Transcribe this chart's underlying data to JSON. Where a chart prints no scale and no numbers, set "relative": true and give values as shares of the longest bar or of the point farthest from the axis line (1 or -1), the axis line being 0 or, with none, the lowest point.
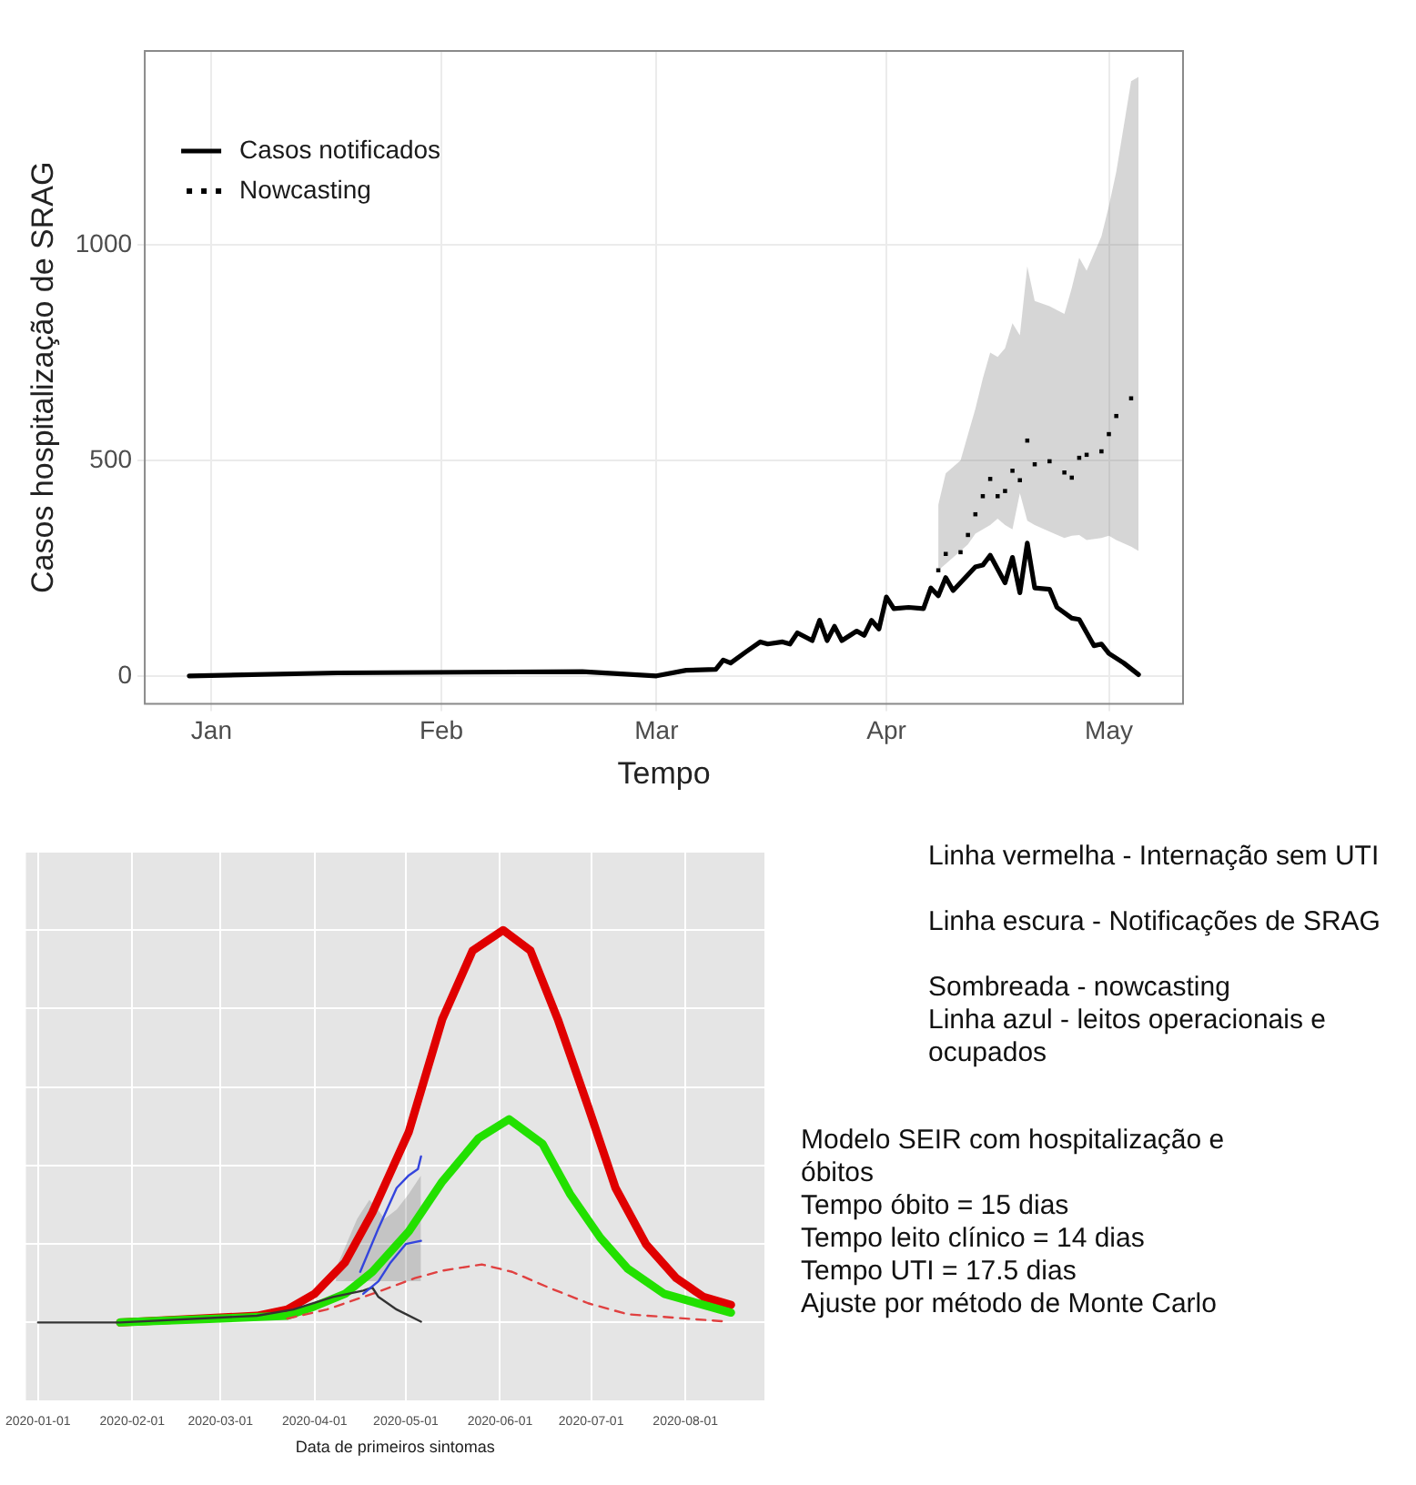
{
  "chart_data": [
    {
      "type": "line",
      "xlabel": "Tempo",
      "ylabel": "Casos hospitalização de SRAG",
      "xlim": [
        "2019-12-23",
        "2020-05-11"
      ],
      "ylim": [
        -65,
        1450
      ],
      "xticks": [
        {
          "value": "2020-01-01",
          "label": "Jan"
        },
        {
          "value": "2020-02-01",
          "label": "Feb"
        },
        {
          "value": "2020-03-01",
          "label": "Mar"
        },
        {
          "value": "2020-04-01",
          "label": "Apr"
        },
        {
          "value": "2020-05-01",
          "label": "May"
        }
      ],
      "yticks": [
        0,
        500,
        1000
      ],
      "grid": true,
      "legend": "top left",
      "series": [
        {
          "name": "Casos notificados",
          "type": "line",
          "color": "#000000",
          "line_style": "solid",
          "marker": "none",
          "x": [
            "2019-12-29",
            "2020-01-18",
            "2020-02-20",
            "2020-03-01",
            "2020-03-05",
            "2020-03-09",
            "2020-03-10",
            "2020-03-11",
            "2020-03-13",
            "2020-03-15",
            "2020-03-16",
            "2020-03-18",
            "2020-03-19",
            "2020-03-20",
            "2020-03-22",
            "2020-03-23",
            "2020-03-24",
            "2020-03-25",
            "2020-03-26",
            "2020-03-28",
            "2020-03-29",
            "2020-03-30",
            "2020-03-31",
            "2020-04-01",
            "2020-04-02",
            "2020-04-04",
            "2020-04-06",
            "2020-04-07",
            "2020-04-08",
            "2020-04-09",
            "2020-04-10",
            "2020-04-13",
            "2020-04-14",
            "2020-04-15",
            "2020-04-17",
            "2020-04-18",
            "2020-04-19",
            "2020-04-20",
            "2020-04-21",
            "2020-04-23",
            "2020-04-24",
            "2020-04-26",
            "2020-04-27",
            "2020-04-29",
            "2020-04-30",
            "2020-05-01",
            "2020-05-03",
            "2020-05-05"
          ],
          "values": [
            0,
            7,
            10,
            0,
            13,
            15,
            37,
            30,
            55,
            79,
            74,
            79,
            74,
            100,
            82,
            129,
            82,
            115,
            82,
            104,
            94,
            129,
            109,
            183,
            156,
            159,
            156,
            204,
            186,
            228,
            198,
            253,
            257,
            280,
            216,
            275,
            193,
            308,
            204,
            201,
            159,
            134,
            131,
            70,
            74,
            52,
            30,
            3
          ]
        },
        {
          "name": "Nowcasting",
          "type": "scatter",
          "color": "#000000",
          "marker": "square",
          "x": [
            "2020-04-08",
            "2020-04-09",
            "2020-04-11",
            "2020-04-12",
            "2020-04-13",
            "2020-04-14",
            "2020-04-15",
            "2020-04-16",
            "2020-04-17",
            "2020-04-18",
            "2020-04-19",
            "2020-04-20",
            "2020-04-21",
            "2020-04-23",
            "2020-04-25",
            "2020-04-26",
            "2020-04-27",
            "2020-04-28",
            "2020-04-30",
            "2020-05-01",
            "2020-05-02",
            "2020-05-04",
            "2020-05-05"
          ],
          "values": [
            245,
            283,
            287,
            327,
            375,
            417,
            457,
            417,
            429,
            476,
            454,
            546,
            491,
            498,
            472,
            460,
            506,
            513,
            521,
            561,
            603,
            644,
            null
          ],
          "lower": [
            245,
            260,
            290,
            305,
            330,
            340,
            350,
            365,
            350,
            340,
            424,
            360,
            350,
            335,
            320,
            325,
            327,
            315,
            320,
            325,
            315,
            300,
            290
          ],
          "upper": [
            397,
            470,
            500,
            560,
            620,
            690,
            750,
            740,
            760,
            818,
            790,
            950,
            870,
            858,
            840,
            900,
            970,
            940,
            1020,
            1090,
            1170,
            1380,
            1390
          ]
        }
      ]
    },
    {
      "type": "line",
      "relative": true,
      "xlabel": "Data de primeiros sintomas",
      "xlim": [
        "2019-12-28",
        "2020-08-27"
      ],
      "xticks": [
        "2020-01-01",
        "2020-02-01",
        "2020-03-01",
        "2020-04-01",
        "2020-05-01",
        "2020-06-01",
        "2020-07-01",
        "2020-08-01"
      ],
      "grid": true,
      "marker": "none",
      "series": [
        {
          "color": "#e00000",
          "line_style": "solid",
          "x": [
            "2020-01-28",
            "2020-03-13",
            "2020-03-23",
            "2020-04-01",
            "2020-04-11",
            "2020-04-20",
            "2020-05-02",
            "2020-05-13",
            "2020-05-23",
            "2020-06-02",
            "2020-06-11",
            "2020-06-20",
            "2020-06-30",
            "2020-07-09",
            "2020-07-19",
            "2020-07-29",
            "2020-08-07",
            "2020-08-16"
          ],
          "values": [
            0,
            0.017,
            0.033,
            0.073,
            0.153,
            0.28,
            0.486,
            0.773,
            0.948,
            1,
            0.948,
            0.773,
            0.55,
            0.343,
            0.2,
            0.113,
            0.065,
            0.045
          ]
        },
        {
          "color": "#22e000",
          "line_style": "solid",
          "x": [
            "2020-01-28",
            "2020-03-23",
            "2020-04-01",
            "2020-04-11",
            "2020-04-20",
            "2020-05-02",
            "2020-05-13",
            "2020-05-25",
            "2020-06-04",
            "2020-06-15",
            "2020-06-24",
            "2020-07-04",
            "2020-07-13",
            "2020-07-25",
            "2020-08-16"
          ],
          "values": [
            0,
            0.017,
            0.041,
            0.073,
            0.129,
            0.232,
            0.359,
            0.47,
            0.518,
            0.455,
            0.328,
            0.216,
            0.137,
            0.073,
            0.025
          ]
        },
        {
          "color": "#e04040",
          "line_style": "dashed",
          "x": [
            "2020-03-23",
            "2020-04-05",
            "2020-04-20",
            "2020-05-04",
            "2020-05-13",
            "2020-05-26",
            "2020-06-05",
            "2020-06-17",
            "2020-06-30",
            "2020-07-13",
            "2020-08-15"
          ],
          "values": [
            0.01,
            0.033,
            0.073,
            0.113,
            0.132,
            0.148,
            0.129,
            0.089,
            0.049,
            0.021,
            0.002
          ]
        },
        {
          "color": "#333333",
          "line_style": "solid",
          "x": [
            "2020-01-01",
            "2020-01-28",
            "2020-03-13",
            "2020-03-25",
            "2020-04-07",
            "2020-04-17",
            "2020-04-20",
            "2020-04-22",
            "2020-04-28",
            "2020-05-06"
          ],
          "values": [
            0,
            0,
            0.017,
            0.033,
            0.065,
            0.081,
            0.089,
            0.065,
            0.033,
            0.002
          ]
        },
        {
          "color": "#3344dd",
          "line_style": "solid",
          "x": [
            "2020-04-16",
            "2020-04-22",
            "2020-04-28",
            "2020-05-02",
            "2020-05-05",
            "2020-05-06"
          ],
          "values": [
            0.129,
            0.24,
            0.343,
            0.375,
            0.391,
            0.423
          ]
        },
        {
          "color": "#3344dd",
          "line_style": "solid",
          "x": [
            "2020-04-17",
            "2020-04-22",
            "2020-04-26",
            "2020-05-01",
            "2020-05-06"
          ],
          "values": [
            0.073,
            0.105,
            0.153,
            0.2,
            0.208
          ]
        },
        {
          "x": [
            "2020-04-08",
            "2020-04-15",
            "2020-04-19",
            "2020-04-21",
            "2020-04-24",
            "2020-04-28",
            "2020-05-02",
            "2020-05-06"
          ],
          "values": [
            null,
            null,
            null,
            null,
            null,
            null,
            null,
            null
          ],
          "lower": [
            0.105,
            0.105,
            0.105,
            0.105,
            0.105,
            0.105,
            0.105,
            0.105
          ],
          "upper": [
            0.137,
            0.264,
            0.312,
            0.296,
            0.264,
            0.288,
            0.328,
            0.375
          ]
        }
      ]
    },
    {
      "type": "other",
      "annotations": [
        "Linha vermelha - Internação sem UTI",
        "Linha escura - Notificações de SRAG",
        "Sombreada - nowcasting",
        "Linha azul - leitos operacionais e ocupados",
        "Modelo SEIR com hospitalização e óbitos",
        "Tempo óbito = 15 dias",
        "Tempo leito clínico = 14 dias",
        "Tempo UTI = 17.5 dias",
        "Ajuste por método de Monte Carlo"
      ]
    }
  ]
}
